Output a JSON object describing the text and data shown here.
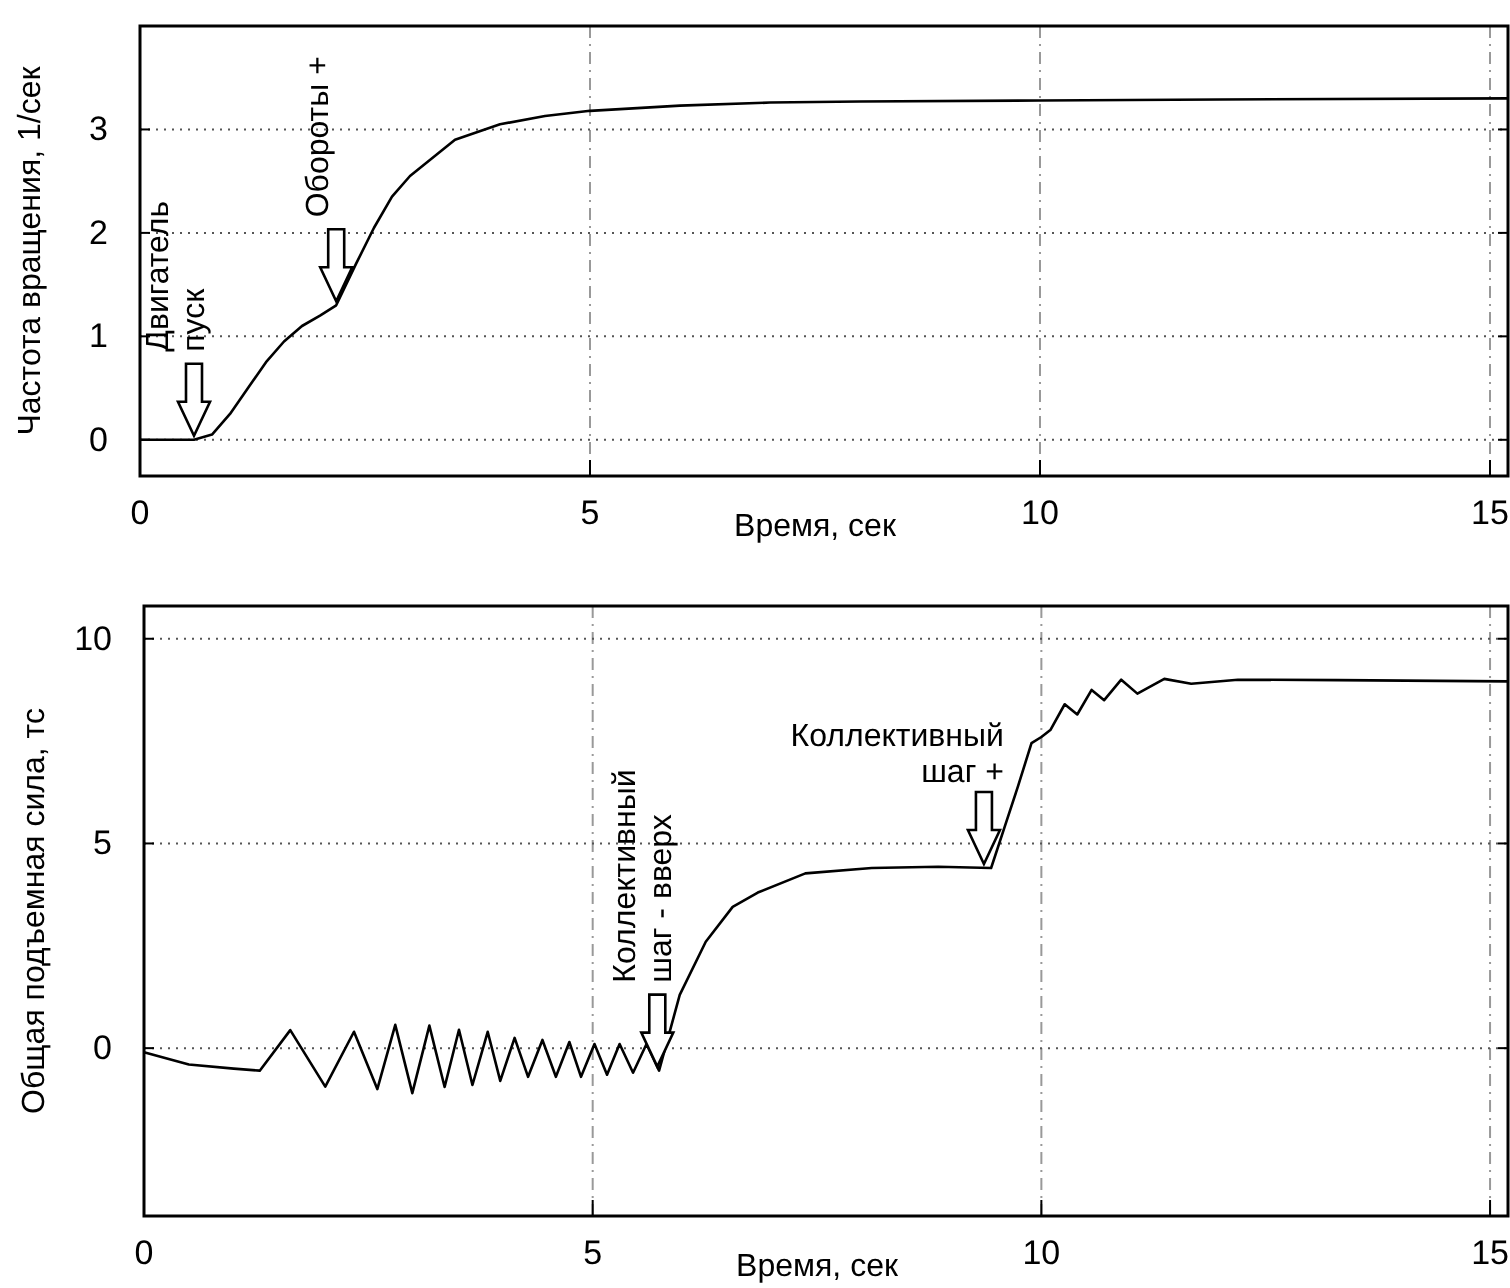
{
  "chart_data": [
    {
      "type": "line",
      "xlabel": "Время, сек",
      "ylabel": "Частота вращения, 1/сек",
      "xlim": [
        0,
        15.2
      ],
      "ylim": [
        -0.35,
        4
      ],
      "xticks": [
        0,
        5,
        10,
        15
      ],
      "yticks": [
        0,
        1,
        2,
        3
      ],
      "grid": true,
      "line_style": "solid",
      "marker": "none",
      "series": [
        {
          "color": "#000000",
          "x": [
            0,
            0.6,
            0.8,
            1.0,
            1.2,
            1.4,
            1.6,
            1.8,
            2.0,
            2.18,
            2.4,
            2.6,
            2.8,
            3.0,
            3.5,
            4.0,
            4.5,
            5.0,
            6.0,
            7.0,
            8.0,
            10.0,
            12.0,
            15.2
          ],
          "values": [
            0,
            0,
            0.05,
            0.25,
            0.5,
            0.75,
            0.95,
            1.1,
            1.2,
            1.3,
            1.7,
            2.05,
            2.35,
            2.55,
            2.9,
            3.05,
            3.13,
            3.18,
            3.23,
            3.26,
            3.27,
            3.28,
            3.29,
            3.3
          ]
        }
      ],
      "annotations": [
        {
          "text": "Двигатель\nпуск",
          "x": 0.6,
          "y": 0
        },
        {
          "text": "Обороты +",
          "x": 2.18,
          "y": 1.3
        }
      ]
    },
    {
      "type": "line",
      "xlabel": "Время, сек",
      "ylabel": "Общая подъемная сила, тс",
      "xlim": [
        0,
        15.2
      ],
      "ylim": [
        -4.1,
        10.8
      ],
      "xticks": [
        0,
        5,
        10,
        15
      ],
      "yticks": [
        0,
        5,
        10
      ],
      "grid": true,
      "line_style": "solid",
      "marker": "none",
      "series": [
        {
          "color": "#000000",
          "x": [
            0,
            0.5,
            1.0,
            1.29,
            1.63,
            2.02,
            2.34,
            2.6,
            2.8,
            2.99,
            3.18,
            3.35,
            3.51,
            3.66,
            3.83,
            3.97,
            4.13,
            4.28,
            4.44,
            4.59,
            4.74,
            4.87,
            5.02,
            5.16,
            5.3,
            5.45,
            5.6,
            5.74,
            5.97,
            6.26,
            6.56,
            6.84,
            7.37,
            8.11,
            8.85,
            9.44,
            9.59,
            9.74,
            9.89,
            10.0,
            10.1,
            10.26,
            10.4,
            10.56,
            10.7,
            10.89,
            11.07,
            11.37,
            11.67,
            12.19,
            13.3,
            15.19
          ],
          "values": [
            -0.1,
            -0.4,
            -0.5,
            -0.55,
            0.44,
            -0.94,
            0.4,
            -1.0,
            0.57,
            -1.1,
            0.55,
            -0.95,
            0.45,
            -0.9,
            0.4,
            -0.8,
            0.25,
            -0.7,
            0.2,
            -0.7,
            0.15,
            -0.7,
            0.1,
            -0.65,
            0.1,
            -0.6,
            0.1,
            -0.55,
            1.3,
            2.6,
            3.45,
            3.8,
            4.27,
            4.4,
            4.43,
            4.4,
            5.4,
            6.4,
            7.45,
            7.6,
            7.77,
            8.4,
            8.15,
            8.75,
            8.5,
            9.0,
            8.66,
            9.02,
            8.9,
            9.0,
            8.99,
            8.96
          ]
        }
      ],
      "annotations": [
        {
          "text": "Коллективный\nшаг - вверх",
          "x": 5.72,
          "y": -0.55
        },
        {
          "text": "Коллективный\nшаг +",
          "x": 9.36,
          "y": 4.4
        }
      ]
    }
  ]
}
